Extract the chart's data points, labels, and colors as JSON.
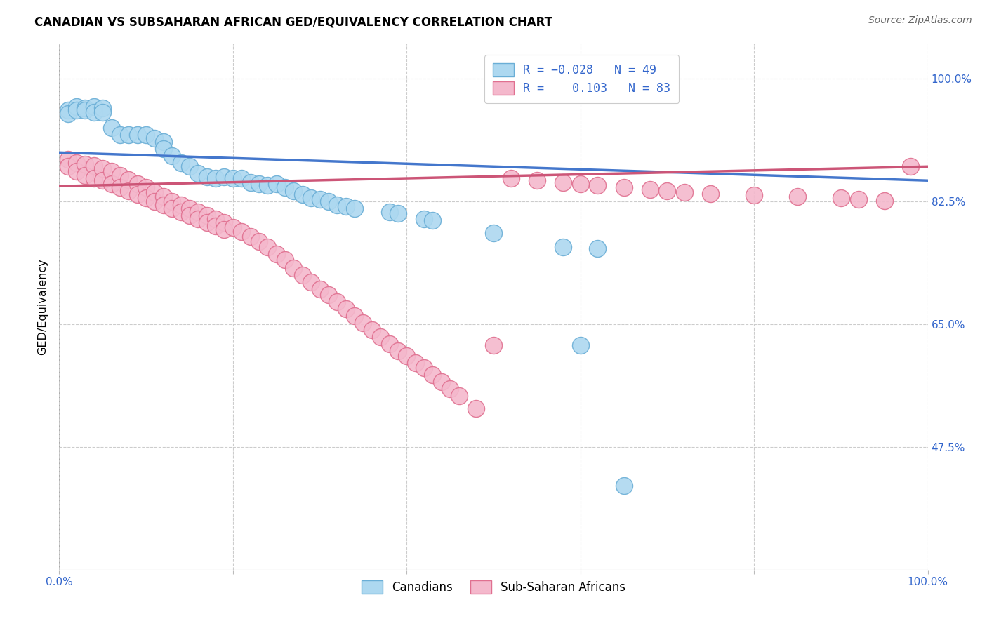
{
  "title": "CANADIAN VS SUBSAHARAN AFRICAN GED/EQUIVALENCY CORRELATION CHART",
  "source": "Source: ZipAtlas.com",
  "ylabel": "GED/Equivalency",
  "xlim": [
    0.0,
    1.0
  ],
  "ylim": [
    0.3,
    1.05
  ],
  "y_ticks": [
    0.475,
    0.65,
    0.825,
    1.0
  ],
  "y_tick_labels": [
    "47.5%",
    "65.0%",
    "82.5%",
    "100.0%"
  ],
  "canadian_color": "#add8f0",
  "canadian_edge": "#6aaed6",
  "subsaharan_color": "#f4b8cc",
  "subsaharan_edge": "#e07090",
  "R_canadian": -0.028,
  "N_canadian": 49,
  "R_subsaharan": 0.103,
  "N_subsaharan": 83,
  "trend_canadian_color": "#4477cc",
  "trend_subsaharan_color": "#cc5577",
  "can_trend_x0": 0.0,
  "can_trend_y0": 0.895,
  "can_trend_x1": 1.0,
  "can_trend_y1": 0.855,
  "sub_trend_x0": 0.0,
  "sub_trend_y0": 0.847,
  "sub_trend_x1": 1.0,
  "sub_trend_y1": 0.875,
  "canadians_x": [
    0.01,
    0.01,
    0.02,
    0.02,
    0.03,
    0.03,
    0.04,
    0.04,
    0.05,
    0.05,
    0.06,
    0.07,
    0.08,
    0.09,
    0.1,
    0.11,
    0.12,
    0.12,
    0.13,
    0.14,
    0.15,
    0.16,
    0.17,
    0.18,
    0.19,
    0.2,
    0.21,
    0.22,
    0.23,
    0.24,
    0.25,
    0.26,
    0.27,
    0.28,
    0.29,
    0.3,
    0.31,
    0.32,
    0.33,
    0.34,
    0.38,
    0.39,
    0.42,
    0.43,
    0.5,
    0.58,
    0.6,
    0.62,
    0.65
  ],
  "canadians_y": [
    0.955,
    0.95,
    0.96,
    0.955,
    0.958,
    0.955,
    0.96,
    0.952,
    0.958,
    0.952,
    0.93,
    0.92,
    0.92,
    0.92,
    0.92,
    0.915,
    0.91,
    0.9,
    0.89,
    0.88,
    0.875,
    0.865,
    0.86,
    0.858,
    0.86,
    0.858,
    0.858,
    0.852,
    0.85,
    0.848,
    0.85,
    0.845,
    0.84,
    0.835,
    0.83,
    0.828,
    0.825,
    0.82,
    0.818,
    0.815,
    0.81,
    0.808,
    0.8,
    0.798,
    0.78,
    0.76,
    0.62,
    0.758,
    0.42
  ],
  "subsaharan_x": [
    0.01,
    0.01,
    0.02,
    0.02,
    0.03,
    0.03,
    0.04,
    0.04,
    0.05,
    0.05,
    0.06,
    0.06,
    0.07,
    0.07,
    0.08,
    0.08,
    0.09,
    0.09,
    0.1,
    0.1,
    0.11,
    0.11,
    0.12,
    0.12,
    0.13,
    0.13,
    0.14,
    0.14,
    0.15,
    0.15,
    0.16,
    0.16,
    0.17,
    0.17,
    0.18,
    0.18,
    0.19,
    0.19,
    0.2,
    0.21,
    0.22,
    0.23,
    0.24,
    0.25,
    0.26,
    0.27,
    0.28,
    0.29,
    0.3,
    0.31,
    0.32,
    0.33,
    0.34,
    0.35,
    0.36,
    0.37,
    0.38,
    0.39,
    0.4,
    0.41,
    0.42,
    0.43,
    0.44,
    0.45,
    0.46,
    0.48,
    0.5,
    0.52,
    0.55,
    0.58,
    0.6,
    0.62,
    0.65,
    0.68,
    0.7,
    0.72,
    0.75,
    0.8,
    0.85,
    0.9,
    0.92,
    0.95,
    0.98
  ],
  "subsaharan_y": [
    0.885,
    0.875,
    0.88,
    0.868,
    0.878,
    0.862,
    0.876,
    0.858,
    0.872,
    0.855,
    0.868,
    0.85,
    0.862,
    0.845,
    0.856,
    0.84,
    0.85,
    0.835,
    0.845,
    0.83,
    0.838,
    0.825,
    0.832,
    0.82,
    0.825,
    0.815,
    0.82,
    0.81,
    0.815,
    0.805,
    0.81,
    0.8,
    0.805,
    0.795,
    0.8,
    0.79,
    0.795,
    0.785,
    0.788,
    0.782,
    0.775,
    0.768,
    0.76,
    0.75,
    0.742,
    0.73,
    0.72,
    0.71,
    0.7,
    0.692,
    0.682,
    0.672,
    0.662,
    0.652,
    0.642,
    0.632,
    0.622,
    0.612,
    0.605,
    0.595,
    0.588,
    0.578,
    0.568,
    0.558,
    0.548,
    0.53,
    0.62,
    0.858,
    0.855,
    0.852,
    0.85,
    0.848,
    0.845,
    0.842,
    0.84,
    0.838,
    0.836,
    0.834,
    0.832,
    0.83,
    0.828,
    0.826,
    0.875
  ]
}
